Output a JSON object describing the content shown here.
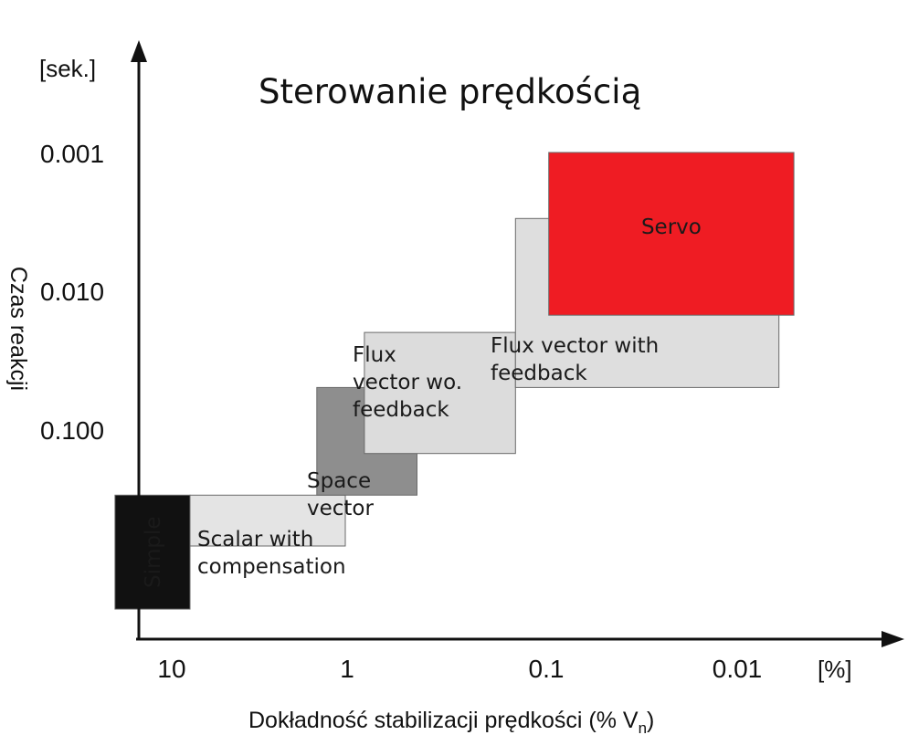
{
  "chart_data": {
    "type": "diagram",
    "title": "Sterowanie prędkością",
    "xlabel": "Dokładność stabilizacji prędkości (% V",
    "xlabel_sub": "n",
    "xlabel_end": ")",
    "ylabel": "Czas reakcji",
    "x_unit": "[%]",
    "y_unit": "[sek.]",
    "x_ticks": [
      "10",
      "1",
      "0.1",
      "0.01"
    ],
    "y_ticks": [
      "0.001",
      "0.010",
      "0.100"
    ],
    "blocks": [
      {
        "name": "Simple",
        "lines": [
          "Simple"
        ],
        "color": "#111111",
        "text_color": "#ffffff",
        "x_range": [
          20,
          8
        ],
        "y_range": [
          2,
          0.3
        ],
        "vertical": true
      },
      {
        "name": "Scalar with compensation",
        "lines": [
          "Scalar with",
          "compensation"
        ],
        "color": "#e4e4e4",
        "text_color": "#1a1a1a",
        "x_range": [
          8,
          1.2
        ],
        "y_range": [
          0.3,
          0.7
        ]
      },
      {
        "name": "Space vector",
        "lines": [
          "Space",
          "vector"
        ],
        "color": "#8e8e8e",
        "text_color": "#1a1a1a",
        "x_range": [
          1.7,
          0.5
        ],
        "y_range": [
          0.05,
          0.3
        ]
      },
      {
        "name": "Flux vector wo. feedback",
        "lines": [
          "Flux",
          "vector wo.",
          "feedback"
        ],
        "color": "#dcdcdc",
        "text_color": "#1a1a1a",
        "x_range": [
          0.95,
          0.15
        ],
        "y_range": [
          0.02,
          0.15
        ]
      },
      {
        "name": "Flux vector with feedback",
        "lines": [
          "Flux vector with",
          " feedback"
        ],
        "color": "#dedede",
        "text_color": "#1a1a1a",
        "x_range": [
          0.15,
          0.006
        ],
        "y_range": [
          0.003,
          0.05
        ]
      },
      {
        "name": "Servo",
        "lines": [
          "Servo"
        ],
        "color": "#ef1c23",
        "text_color": "#ffffff",
        "x_range": [
          0.1,
          0.005
        ],
        "y_range": [
          0.001,
          0.015
        ]
      }
    ]
  }
}
